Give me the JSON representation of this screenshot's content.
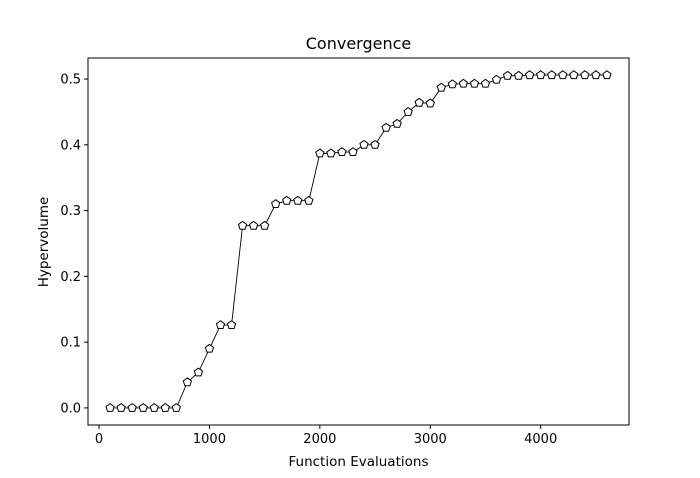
{
  "chart_data": {
    "type": "line",
    "title": "Convergence",
    "xlabel": "Function Evaluations",
    "ylabel": "Hypervolume",
    "xlim": [
      -100,
      4800
    ],
    "ylim": [
      -0.026,
      0.532
    ],
    "xticks": [
      0,
      1000,
      2000,
      3000,
      4000
    ],
    "yticks": [
      0.0,
      0.1,
      0.2,
      0.3,
      0.4,
      0.5
    ],
    "xtick_labels": [
      "0",
      "1000",
      "2000",
      "3000",
      "4000"
    ],
    "ytick_labels": [
      "0.0",
      "0.1",
      "0.2",
      "0.3",
      "0.4",
      "0.5"
    ],
    "grid": false,
    "marker": "pentagon",
    "line_color": "#000000",
    "marker_face_color": "#ffffff",
    "series": [
      {
        "x": [
          100,
          200,
          300,
          400,
          500,
          600,
          700,
          800,
          900,
          1000,
          1100,
          1200,
          1300,
          1400,
          1500,
          1600,
          1700,
          1800,
          1900,
          2000,
          2100,
          2200,
          2300,
          2400,
          2500,
          2600,
          2700,
          2800,
          2900,
          3000,
          3100,
          3200,
          3300,
          3400,
          3500,
          3600,
          3700,
          3800,
          3900,
          4000,
          4100,
          4200,
          4300,
          4400,
          4500,
          4600
        ],
        "values": [
          0.0,
          0.0,
          0.0,
          0.0,
          0.0,
          0.0,
          0.0,
          0.039,
          0.054,
          0.09,
          0.126,
          0.126,
          0.277,
          0.277,
          0.277,
          0.31,
          0.315,
          0.315,
          0.315,
          0.387,
          0.387,
          0.389,
          0.389,
          0.4,
          0.4,
          0.426,
          0.432,
          0.45,
          0.464,
          0.463,
          0.487,
          0.492,
          0.493,
          0.493,
          0.493,
          0.499,
          0.505,
          0.505,
          0.506,
          0.506,
          0.506,
          0.506,
          0.506,
          0.506,
          0.506,
          0.506
        ]
      }
    ]
  }
}
